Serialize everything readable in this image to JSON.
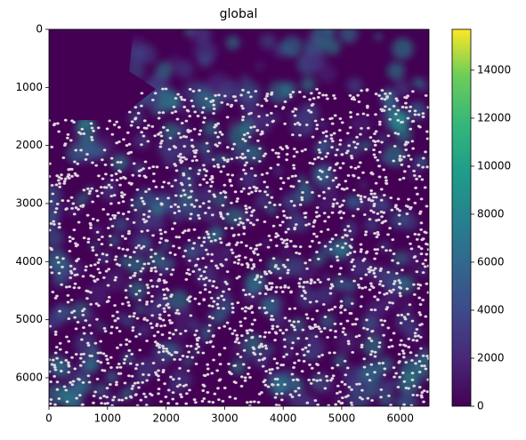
{
  "chart_data": {
    "type": "image",
    "title": "global",
    "xlim": [
      0,
      6490
    ],
    "ylim": [
      6490,
      0
    ],
    "xticks": [
      0,
      1000,
      2000,
      3000,
      4000,
      5000,
      6000
    ],
    "yticks": [
      0,
      1000,
      2000,
      3000,
      4000,
      5000,
      6000
    ],
    "colorbar": {
      "lim": [
        0,
        15700
      ],
      "ticks": [
        0,
        2000,
        4000,
        6000,
        8000,
        10000,
        12000,
        14000
      ]
    }
  }
}
